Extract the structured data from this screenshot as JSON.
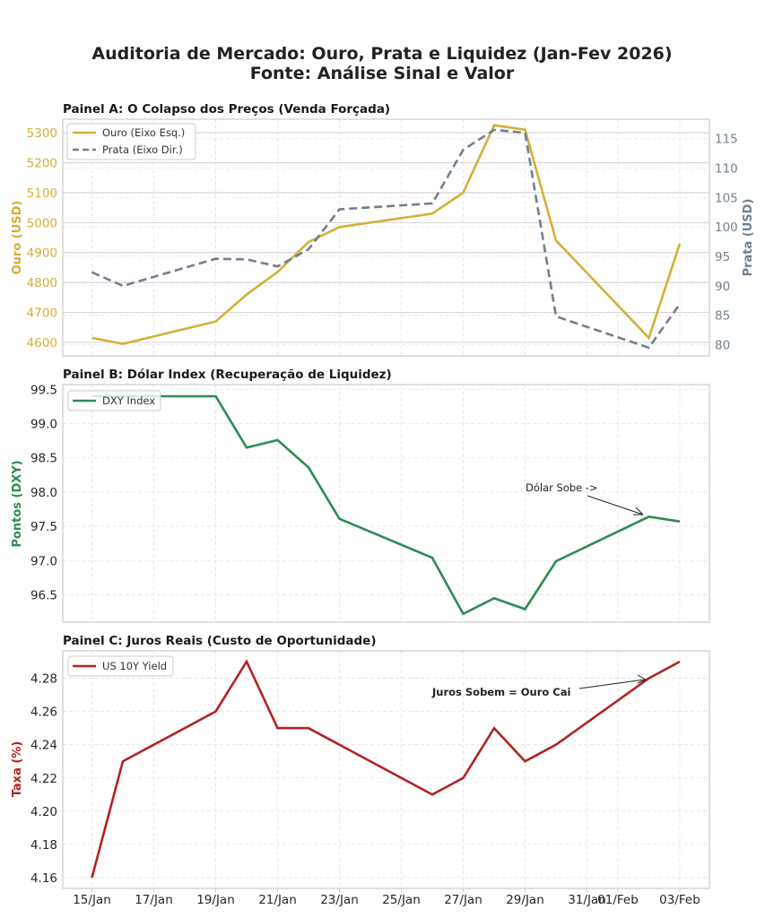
{
  "title_line1": "Auditoria de Mercado: Ouro, Prata e Liquidez (Jan-Fev 2026)",
  "title_line2": "Fonte: Análise Sinal e Valor",
  "colors": {
    "gold": "#D4AF37",
    "silver": "#708090",
    "dxy": "#2E8B57",
    "yield": "#B22222",
    "text": "#262626",
    "grid": "#d0d0d0"
  },
  "x_dates": [
    "15/Jan",
    "16/Jan",
    "19/Jan",
    "20/Jan",
    "21/Jan",
    "22/Jan",
    "23/Jan",
    "26/Jan",
    "27/Jan",
    "28/Jan",
    "29/Jan",
    "30/Jan",
    "02/Feb",
    "03/Feb"
  ],
  "x_day_index": [
    0,
    1,
    4,
    5,
    6,
    7,
    8,
    11,
    12,
    13,
    14,
    15,
    18,
    19
  ],
  "x_ticks": [
    {
      "label": "15/Jan",
      "day": 0
    },
    {
      "label": "17/Jan",
      "day": 2
    },
    {
      "label": "19/Jan",
      "day": 4
    },
    {
      "label": "21/Jan",
      "day": 6
    },
    {
      "label": "23/Jan",
      "day": 8
    },
    {
      "label": "25/Jan",
      "day": 10
    },
    {
      "label": "27/Jan",
      "day": 12
    },
    {
      "label": "29/Jan",
      "day": 14
    },
    {
      "label": "31/Jan",
      "day": 16
    },
    {
      "label": "01/Feb",
      "day": 17
    },
    {
      "label": "03/Feb",
      "day": 19
    }
  ],
  "chart_data": [
    {
      "type": "line",
      "title": "Painel A: O Colapso dos Preços (Venda Forçada)",
      "ylabel": "Ouro (USD)",
      "ylabel_right": "Prata (USD)",
      "ylim": [
        4555,
        5345
      ],
      "ylim_right": [
        78.1,
        118.3
      ],
      "yticks": [
        "4600",
        "4700",
        "4800",
        "4900",
        "5000",
        "5100",
        "5200",
        "5300"
      ],
      "yticks_right": [
        "80",
        "85",
        "90",
        "95",
        "100",
        "105",
        "110",
        "115"
      ],
      "legend_position": "upper left",
      "grid": true,
      "series": [
        {
          "name": "Ouro (Eixo Esq.)",
          "axis": "left",
          "style": "solid",
          "values": [
            4615,
            4595,
            4670,
            4760,
            4835,
            4935,
            4985,
            5030,
            5100,
            5325,
            5310,
            4940,
            4615,
            4930
          ]
        },
        {
          "name": "Prata (Eixo Dir.)",
          "axis": "right",
          "style": "dashed",
          "values": [
            92.3,
            90.0,
            94.6,
            94.5,
            93.3,
            96.2,
            103.0,
            104.0,
            113.1,
            116.5,
            116.0,
            84.8,
            79.5,
            86.9
          ]
        }
      ]
    },
    {
      "type": "line",
      "title": "Painel B: Dólar Index (Recuperação de Liquidez)",
      "ylabel": "Pontos (DXY)",
      "ylim": [
        96.1,
        99.57
      ],
      "yticks": [
        "96.5",
        "97.0",
        "97.5",
        "98.0",
        "98.5",
        "99.0",
        "99.5"
      ],
      "legend_position": "upper left",
      "grid": true,
      "series": [
        {
          "name": "DXY Index",
          "style": "solid",
          "values": [
            99.4,
            99.4,
            99.4,
            98.65,
            98.76,
            98.36,
            97.61,
            97.04,
            96.22,
            96.45,
            96.29,
            96.99,
            97.64,
            97.57
          ]
        }
      ],
      "annotation": {
        "text": "Dólar Sobe ->",
        "points_to": "02/Feb"
      }
    },
    {
      "type": "line",
      "title": "Painel C: Juros Reais (Custo de Oportunidade)",
      "ylabel": "Taxa (%)",
      "ylim": [
        4.1535,
        4.2965
      ],
      "yticks": [
        "4.16",
        "4.18",
        "4.20",
        "4.22",
        "4.24",
        "4.26",
        "4.28"
      ],
      "legend_position": "upper left",
      "grid": true,
      "series": [
        {
          "name": "US 10Y Yield",
          "style": "solid",
          "values": [
            4.16,
            4.23,
            4.26,
            4.29,
            4.25,
            4.25,
            4.24,
            4.21,
            4.22,
            4.25,
            4.23,
            4.24,
            4.28,
            4.29
          ]
        }
      ],
      "annotation": {
        "text": "Juros Sobem = Ouro Cai",
        "points_to": "02/Feb"
      }
    }
  ]
}
